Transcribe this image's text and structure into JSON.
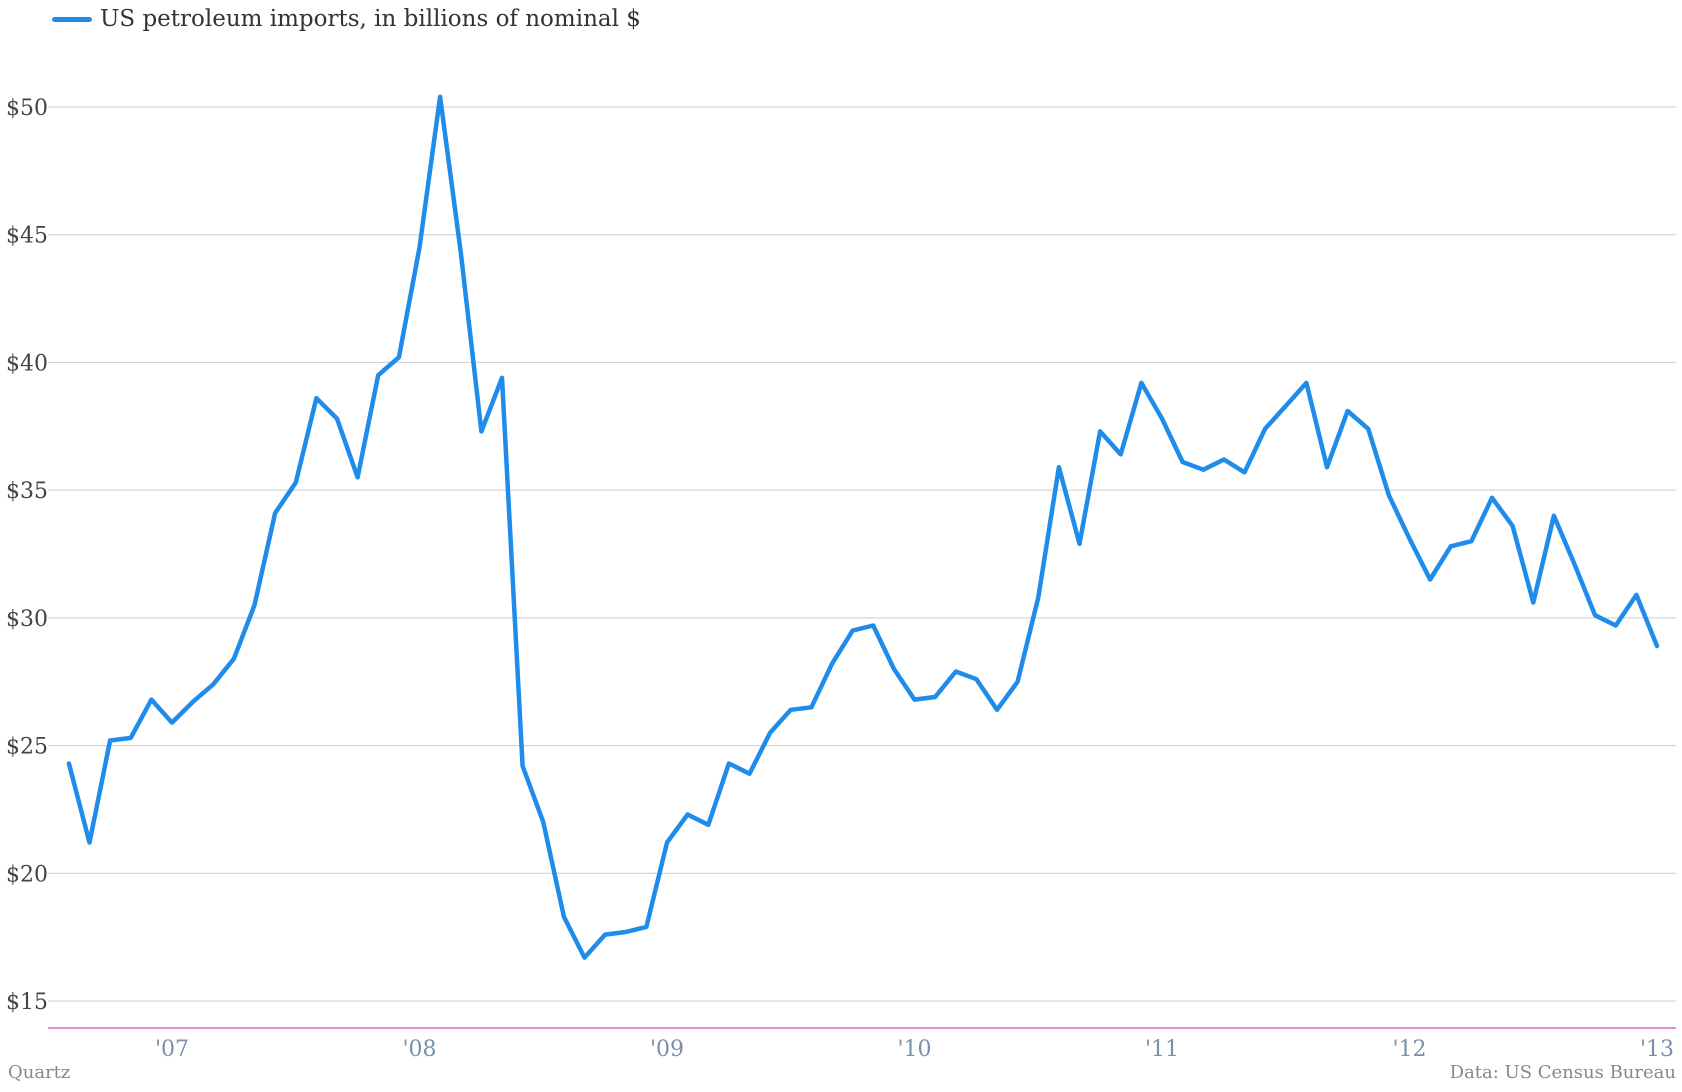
{
  "legend": {
    "label": "US petroleum imports, in billions of nominal $",
    "color": "#1f8ceb"
  },
  "footer": {
    "source_left": "Quartz",
    "source_right": "Data: US Census Bureau"
  },
  "colors": {
    "line": "#1f8ceb",
    "grid": "#cccccc",
    "x_axis": "#d86bc4",
    "y_tick_text": "#444444",
    "x_tick_text": "#7a8fa8"
  },
  "chart_data": {
    "type": "line",
    "title": "",
    "xlabel": "",
    "ylabel": "",
    "ylim": [
      14,
      51
    ],
    "xlim": [
      2006.59,
      2013.0
    ],
    "grid": true,
    "legend_position": "top-left",
    "y_ticks": [
      {
        "value": 15,
        "label": "$15"
      },
      {
        "value": 20,
        "label": "$20"
      },
      {
        "value": 25,
        "label": "$25"
      },
      {
        "value": 30,
        "label": "$30"
      },
      {
        "value": 35,
        "label": "$35"
      },
      {
        "value": 40,
        "label": "$40"
      },
      {
        "value": 45,
        "label": "$45"
      },
      {
        "value": 50,
        "label": "$50"
      }
    ],
    "x_ticks": [
      {
        "value": 2007.0,
        "label": "'07"
      },
      {
        "value": 2008.0,
        "label": "'08"
      },
      {
        "value": 2009.0,
        "label": "'09"
      },
      {
        "value": 2010.0,
        "label": "'10"
      },
      {
        "value": 2011.0,
        "label": "'11"
      },
      {
        "value": 2012.0,
        "label": "'12"
      },
      {
        "value": 2013.0,
        "label": "'13"
      }
    ],
    "series": [
      {
        "name": "US petroleum imports, in billions of nominal $",
        "x": [
          2006.5833,
          2006.6667,
          2006.75,
          2006.8333,
          2006.9167,
          2007.0,
          2007.0833,
          2007.1667,
          2007.25,
          2007.3333,
          2007.4167,
          2007.5,
          2007.5833,
          2007.6667,
          2007.75,
          2007.8333,
          2007.9167,
          2008.0,
          2008.0833,
          2008.1667,
          2008.25,
          2008.3333,
          2008.4167,
          2008.5,
          2008.5833,
          2008.6667,
          2008.75,
          2008.8333,
          2008.9167,
          2009.0,
          2009.0833,
          2009.1667,
          2009.25,
          2009.3333,
          2009.4167,
          2009.5,
          2009.5833,
          2009.6667,
          2009.75,
          2009.8333,
          2009.9167,
          2010.0,
          2010.0833,
          2010.1667,
          2010.25,
          2010.3333,
          2010.4167,
          2010.5,
          2010.5833,
          2010.6667,
          2010.75,
          2010.8333,
          2010.9167,
          2011.0,
          2011.0833,
          2011.1667,
          2011.25,
          2011.3333,
          2011.4167,
          2011.5,
          2011.5833,
          2011.6667,
          2011.75,
          2011.8333,
          2011.9167,
          2012.0,
          2012.0833,
          2012.1667,
          2012.25,
          2012.3333,
          2012.4167,
          2012.5,
          2012.5833,
          2012.6667,
          2012.75,
          2012.8333,
          2012.9167
        ],
        "values": [
          24.3,
          21.2,
          25.2,
          25.3,
          26.8,
          25.9,
          26.7,
          27.4,
          28.4,
          30.5,
          34.1,
          35.3,
          38.6,
          37.8,
          35.5,
          39.5,
          40.2,
          44.5,
          50.4,
          44.3,
          37.3,
          39.4,
          24.2,
          22.0,
          18.3,
          16.7,
          17.6,
          17.7,
          17.9,
          21.2,
          22.3,
          21.9,
          24.3,
          23.9,
          25.5,
          26.4,
          26.5,
          28.2,
          29.5,
          29.7,
          28.0,
          26.8,
          26.9,
          27.9,
          27.6,
          26.4,
          27.5,
          30.8,
          35.9,
          32.9,
          37.3,
          36.4,
          39.2,
          37.8,
          36.1,
          35.8,
          36.2,
          35.7,
          37.4,
          38.3,
          39.2,
          35.9,
          38.1,
          37.4,
          34.8,
          33.1,
          31.5,
          32.8,
          33.0,
          34.7,
          33.6,
          30.6,
          34.0,
          32.1,
          30.1,
          29.7,
          30.9
        ]
      }
    ],
    "trailing_point": {
      "x": 2013.0,
      "value": 28.9
    }
  }
}
